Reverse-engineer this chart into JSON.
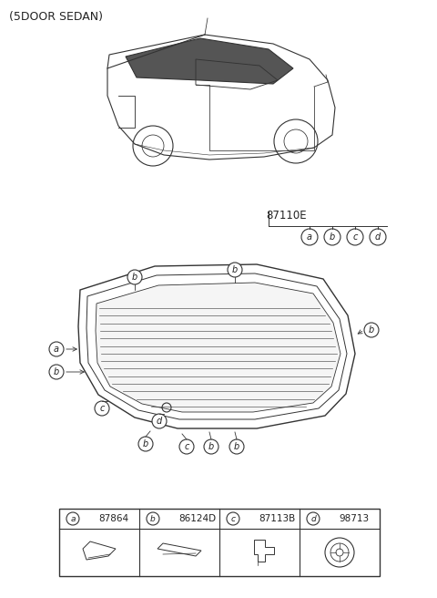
{
  "title": "(5DOOR SEDAN)",
  "part_number_label": "87110E",
  "legend_items": [
    {
      "letter": "a",
      "code": "87864"
    },
    {
      "letter": "b",
      "code": "86124D"
    },
    {
      "letter": "c",
      "code": "87113B"
    },
    {
      "letter": "d",
      "code": "98713"
    }
  ],
  "bg_color": "#ffffff",
  "line_color": "#333333",
  "text_color": "#222222"
}
